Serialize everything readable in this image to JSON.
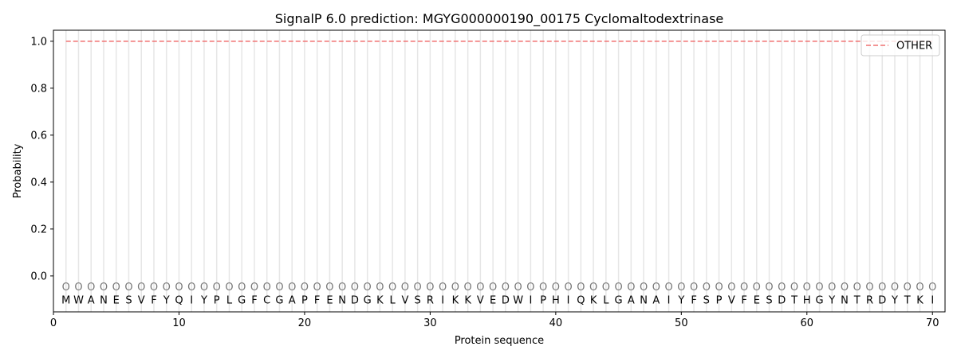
{
  "chart_data": {
    "type": "line",
    "title": "SignalP 6.0 prediction: MGYG000000190_00175 Cyclomaltodextrinase",
    "xlabel": "Protein sequence",
    "ylabel": "Probability",
    "xlim": [
      0,
      71
    ],
    "ylim": [
      -0.153,
      1.047
    ],
    "xticks": [
      0,
      10,
      20,
      30,
      40,
      50,
      60,
      70
    ],
    "yticks": [
      0.0,
      0.2,
      0.4,
      0.6,
      0.8,
      1.0
    ],
    "ytick_labels": [
      "0.0",
      "0.2",
      "0.4",
      "0.6",
      "0.8",
      "1.0"
    ],
    "grid": "vertical lines at each residue",
    "legend_position": "top-right",
    "sequence": [
      "M",
      "W",
      "A",
      "N",
      "E",
      "S",
      "V",
      "F",
      "Y",
      "Q",
      "I",
      "Y",
      "P",
      "L",
      "G",
      "F",
      "C",
      "G",
      "A",
      "P",
      "F",
      "E",
      "N",
      "D",
      "G",
      "K",
      "L",
      "V",
      "S",
      "R",
      "I",
      "K",
      "K",
      "V",
      "E",
      "D",
      "W",
      "I",
      "P",
      "H",
      "I",
      "Q",
      "K",
      "L",
      "G",
      "A",
      "N",
      "A",
      "I",
      "Y",
      "F",
      "S",
      "P",
      "V",
      "F",
      "E",
      "S",
      "D",
      "T",
      "H",
      "G",
      "Y",
      "N",
      "T",
      "R",
      "D",
      "Y",
      "T",
      "K",
      "I"
    ],
    "predicted_labels": "OOOOOOOOOOOOOOOOOOOOOOOOOOOOOOOOOOOOOOOOOOOOOOOOOOOOOOOOOOOOOOOOOOOOOO",
    "series": [
      {
        "name": "OTHER",
        "color": "#f07070",
        "style": "dashed",
        "x_range": [
          1,
          70
        ],
        "value": 1.0
      }
    ]
  }
}
